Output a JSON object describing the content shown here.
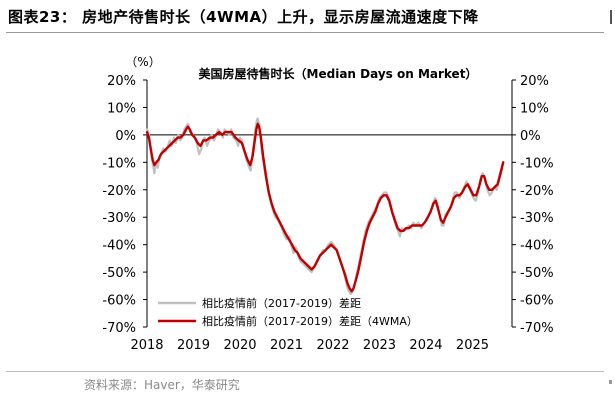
{
  "header": {
    "figure_title": "图表23：  房地产待售时长（4WMA）上升，显示房屋流通速度下降"
  },
  "footer": {
    "source": "资料来源：Haver，华泰研究"
  },
  "chart_data": {
    "type": "line",
    "title": "美国房屋待售时长（Median Days on Market）",
    "unit_label": "（%）",
    "y_ticks": [
      "20%",
      "10%",
      "0%",
      "-10%",
      "-20%",
      "-30%",
      "-40%",
      "-50%",
      "-60%",
      "-70%"
    ],
    "ylim": [
      -70,
      20
    ],
    "x_ticks": [
      "2018",
      "2019",
      "2020",
      "2021",
      "2022",
      "2023",
      "2024",
      "2025"
    ],
    "xlim": [
      2018.0,
      2025.85
    ],
    "legend_position": "bottom-left",
    "grid": false,
    "series": [
      {
        "name": "相比疫情前（2017-2019）差距",
        "color": "#c0c0c0",
        "points": [
          [
            2018.0,
            2
          ],
          [
            2018.03,
            1
          ],
          [
            2018.06,
            -2
          ],
          [
            2018.08,
            -5
          ],
          [
            2018.1,
            -8
          ],
          [
            2018.13,
            -11
          ],
          [
            2018.16,
            -14
          ],
          [
            2018.19,
            -10
          ],
          [
            2018.23,
            -12
          ],
          [
            2018.27,
            -8
          ],
          [
            2018.31,
            -7
          ],
          [
            2018.35,
            -5
          ],
          [
            2018.4,
            -6
          ],
          [
            2018.45,
            -4
          ],
          [
            2018.49,
            -2
          ],
          [
            2018.53,
            -4
          ],
          [
            2018.58,
            -1
          ],
          [
            2018.62,
            -3
          ],
          [
            2018.67,
            0
          ],
          [
            2018.72,
            -2
          ],
          [
            2018.77,
            0
          ],
          [
            2018.8,
            2
          ],
          [
            2018.84,
            3
          ],
          [
            2018.88,
            4
          ],
          [
            2018.93,
            1
          ],
          [
            2018.98,
            0
          ],
          [
            2019.02,
            -1
          ],
          [
            2019.07,
            -3
          ],
          [
            2019.12,
            -7
          ],
          [
            2019.17,
            -5
          ],
          [
            2019.2,
            -2
          ],
          [
            2019.24,
            -1
          ],
          [
            2019.29,
            -4
          ],
          [
            2019.34,
            -2
          ],
          [
            2019.39,
            0
          ],
          [
            2019.44,
            -2
          ],
          [
            2019.49,
            0
          ],
          [
            2019.53,
            2
          ],
          [
            2019.58,
            1
          ],
          [
            2019.63,
            -1
          ],
          [
            2019.67,
            2
          ],
          [
            2019.72,
            1
          ],
          [
            2019.77,
            0
          ],
          [
            2019.81,
            2
          ],
          [
            2019.86,
            -1
          ],
          [
            2019.92,
            -2
          ],
          [
            2019.96,
            -4
          ],
          [
            2020.0,
            -1
          ],
          [
            2020.04,
            -2
          ],
          [
            2020.08,
            -5
          ],
          [
            2020.12,
            -8
          ],
          [
            2020.16,
            -10
          ],
          [
            2020.2,
            -12
          ],
          [
            2020.23,
            -13
          ],
          [
            2020.27,
            -7
          ],
          [
            2020.3,
            -3
          ],
          [
            2020.33,
            2
          ],
          [
            2020.36,
            5
          ],
          [
            2020.38,
            6
          ],
          [
            2020.41,
            4
          ],
          [
            2020.44,
            -1
          ],
          [
            2020.47,
            -6
          ],
          [
            2020.52,
            -12
          ],
          [
            2020.58,
            -18
          ],
          [
            2020.64,
            -23
          ],
          [
            2020.7,
            -27
          ],
          [
            2020.76,
            -30
          ],
          [
            2020.82,
            -31
          ],
          [
            2020.88,
            -33
          ],
          [
            2020.94,
            -36
          ],
          [
            2021.0,
            -38
          ],
          [
            2021.06,
            -37
          ],
          [
            2021.1,
            -40
          ],
          [
            2021.15,
            -43
          ],
          [
            2021.2,
            -41
          ],
          [
            2021.25,
            -44
          ],
          [
            2021.3,
            -46
          ],
          [
            2021.36,
            -47
          ],
          [
            2021.42,
            -48
          ],
          [
            2021.48,
            -49
          ],
          [
            2021.54,
            -50
          ],
          [
            2021.6,
            -48
          ],
          [
            2021.66,
            -46
          ],
          [
            2021.72,
            -44
          ],
          [
            2021.78,
            -42
          ],
          [
            2021.84,
            -42
          ],
          [
            2021.9,
            -40
          ],
          [
            2021.96,
            -39
          ],
          [
            2022.02,
            -40
          ],
          [
            2022.08,
            -42
          ],
          [
            2022.14,
            -45
          ],
          [
            2022.2,
            -48
          ],
          [
            2022.26,
            -52
          ],
          [
            2022.3,
            -55
          ],
          [
            2022.34,
            -57
          ],
          [
            2022.38,
            -58
          ],
          [
            2022.42,
            -57
          ],
          [
            2022.46,
            -55
          ],
          [
            2022.52,
            -50
          ],
          [
            2022.58,
            -45
          ],
          [
            2022.64,
            -40
          ],
          [
            2022.7,
            -35
          ],
          [
            2022.76,
            -32
          ],
          [
            2022.82,
            -30
          ],
          [
            2022.88,
            -28
          ],
          [
            2022.94,
            -26
          ],
          [
            2023.0,
            -23
          ],
          [
            2023.05,
            -22
          ],
          [
            2023.1,
            -21
          ],
          [
            2023.15,
            -21
          ],
          [
            2023.2,
            -23
          ],
          [
            2023.25,
            -26
          ],
          [
            2023.3,
            -30
          ],
          [
            2023.35,
            -33
          ],
          [
            2023.4,
            -35
          ],
          [
            2023.44,
            -37
          ],
          [
            2023.48,
            -34
          ],
          [
            2023.53,
            -35
          ],
          [
            2023.58,
            -34
          ],
          [
            2023.63,
            -33
          ],
          [
            2023.68,
            -34
          ],
          [
            2023.73,
            -32
          ],
          [
            2023.78,
            -33
          ],
          [
            2023.84,
            -32
          ],
          [
            2023.9,
            -34
          ],
          [
            2023.96,
            -32
          ],
          [
            2024.02,
            -31
          ],
          [
            2024.07,
            -29
          ],
          [
            2024.12,
            -27
          ],
          [
            2024.17,
            -24
          ],
          [
            2024.2,
            -23
          ],
          [
            2024.24,
            -25
          ],
          [
            2024.29,
            -29
          ],
          [
            2024.34,
            -33
          ],
          [
            2024.38,
            -33
          ],
          [
            2024.42,
            -29
          ],
          [
            2024.47,
            -28
          ],
          [
            2024.52,
            -27
          ],
          [
            2024.57,
            -24
          ],
          [
            2024.62,
            -21
          ],
          [
            2024.67,
            -21
          ],
          [
            2024.72,
            -23
          ],
          [
            2024.77,
            -21
          ],
          [
            2024.82,
            -19
          ],
          [
            2024.87,
            -17
          ],
          [
            2024.92,
            -19
          ],
          [
            2024.97,
            -21
          ],
          [
            2025.02,
            -23
          ],
          [
            2025.07,
            -24
          ],
          [
            2025.12,
            -21
          ],
          [
            2025.17,
            -16
          ],
          [
            2025.22,
            -14
          ],
          [
            2025.27,
            -16
          ],
          [
            2025.32,
            -20
          ],
          [
            2025.37,
            -22
          ],
          [
            2025.42,
            -21
          ],
          [
            2025.47,
            -19
          ],
          [
            2025.52,
            -20
          ],
          [
            2025.57,
            -17
          ],
          [
            2025.62,
            -14
          ],
          [
            2025.66,
            -10
          ]
        ]
      },
      {
        "name": "相比疫情前（2017-2019）差距（4WMA）",
        "color": "#c00000",
        "points": [
          [
            2018.0,
            1
          ],
          [
            2018.04,
            -1
          ],
          [
            2018.08,
            -5
          ],
          [
            2018.12,
            -9
          ],
          [
            2018.16,
            -11
          ],
          [
            2018.2,
            -10
          ],
          [
            2018.25,
            -9
          ],
          [
            2018.3,
            -7
          ],
          [
            2018.36,
            -6
          ],
          [
            2018.42,
            -5
          ],
          [
            2018.48,
            -4
          ],
          [
            2018.54,
            -3
          ],
          [
            2018.6,
            -2
          ],
          [
            2018.66,
            -1
          ],
          [
            2018.72,
            -1
          ],
          [
            2018.78,
            0
          ],
          [
            2018.84,
            2
          ],
          [
            2018.88,
            3
          ],
          [
            2018.92,
            2
          ],
          [
            2018.97,
            0
          ],
          [
            2019.03,
            -1
          ],
          [
            2019.09,
            -3
          ],
          [
            2019.15,
            -4
          ],
          [
            2019.21,
            -2
          ],
          [
            2019.28,
            -2
          ],
          [
            2019.35,
            -1
          ],
          [
            2019.42,
            -1
          ],
          [
            2019.48,
            0
          ],
          [
            2019.55,
            1
          ],
          [
            2019.62,
            0
          ],
          [
            2019.68,
            1
          ],
          [
            2019.75,
            1
          ],
          [
            2019.82,
            1
          ],
          [
            2019.9,
            -1
          ],
          [
            2019.97,
            -2
          ],
          [
            2020.04,
            -3
          ],
          [
            2020.1,
            -6
          ],
          [
            2020.16,
            -9
          ],
          [
            2020.22,
            -11
          ],
          [
            2020.27,
            -8
          ],
          [
            2020.31,
            -3
          ],
          [
            2020.35,
            2
          ],
          [
            2020.38,
            4
          ],
          [
            2020.41,
            3
          ],
          [
            2020.45,
            -1
          ],
          [
            2020.5,
            -8
          ],
          [
            2020.56,
            -15
          ],
          [
            2020.62,
            -21
          ],
          [
            2020.68,
            -25
          ],
          [
            2020.74,
            -28
          ],
          [
            2020.8,
            -30
          ],
          [
            2020.86,
            -32
          ],
          [
            2020.92,
            -34
          ],
          [
            2020.98,
            -36
          ],
          [
            2021.05,
            -38
          ],
          [
            2021.12,
            -40
          ],
          [
            2021.18,
            -42
          ],
          [
            2021.24,
            -43
          ],
          [
            2021.3,
            -45
          ],
          [
            2021.36,
            -46
          ],
          [
            2021.42,
            -47
          ],
          [
            2021.48,
            -48
          ],
          [
            2021.54,
            -49
          ],
          [
            2021.6,
            -48
          ],
          [
            2021.66,
            -46
          ],
          [
            2021.72,
            -44
          ],
          [
            2021.78,
            -43
          ],
          [
            2021.84,
            -42
          ],
          [
            2021.9,
            -41
          ],
          [
            2021.96,
            -40
          ],
          [
            2022.02,
            -41
          ],
          [
            2022.08,
            -42
          ],
          [
            2022.14,
            -45
          ],
          [
            2022.2,
            -48
          ],
          [
            2022.26,
            -51
          ],
          [
            2022.31,
            -54
          ],
          [
            2022.36,
            -56
          ],
          [
            2022.4,
            -57
          ],
          [
            2022.44,
            -56
          ],
          [
            2022.49,
            -53
          ],
          [
            2022.55,
            -49
          ],
          [
            2022.61,
            -44
          ],
          [
            2022.67,
            -39
          ],
          [
            2022.73,
            -35
          ],
          [
            2022.79,
            -32
          ],
          [
            2022.85,
            -30
          ],
          [
            2022.91,
            -28
          ],
          [
            2022.97,
            -25
          ],
          [
            2023.03,
            -23
          ],
          [
            2023.09,
            -22
          ],
          [
            2023.15,
            -22
          ],
          [
            2023.21,
            -24
          ],
          [
            2023.27,
            -28
          ],
          [
            2023.33,
            -31
          ],
          [
            2023.39,
            -34
          ],
          [
            2023.45,
            -35
          ],
          [
            2023.51,
            -35
          ],
          [
            2023.57,
            -34
          ],
          [
            2023.63,
            -34
          ],
          [
            2023.7,
            -33
          ],
          [
            2023.77,
            -33
          ],
          [
            2023.84,
            -33
          ],
          [
            2023.91,
            -33
          ],
          [
            2023.97,
            -32
          ],
          [
            2024.04,
            -30
          ],
          [
            2024.1,
            -28
          ],
          [
            2024.16,
            -25
          ],
          [
            2024.21,
            -24
          ],
          [
            2024.26,
            -27
          ],
          [
            2024.32,
            -31
          ],
          [
            2024.37,
            -32
          ],
          [
            2024.42,
            -30
          ],
          [
            2024.48,
            -28
          ],
          [
            2024.54,
            -26
          ],
          [
            2024.6,
            -23
          ],
          [
            2024.66,
            -22
          ],
          [
            2024.72,
            -22
          ],
          [
            2024.78,
            -21
          ],
          [
            2024.84,
            -19
          ],
          [
            2024.9,
            -18
          ],
          [
            2024.96,
            -20
          ],
          [
            2025.02,
            -22
          ],
          [
            2025.08,
            -22
          ],
          [
            2025.14,
            -19
          ],
          [
            2025.2,
            -15
          ],
          [
            2025.25,
            -15
          ],
          [
            2025.3,
            -18
          ],
          [
            2025.36,
            -20
          ],
          [
            2025.42,
            -20
          ],
          [
            2025.48,
            -19
          ],
          [
            2025.54,
            -18
          ],
          [
            2025.6,
            -14
          ],
          [
            2025.66,
            -10
          ]
        ]
      }
    ]
  }
}
